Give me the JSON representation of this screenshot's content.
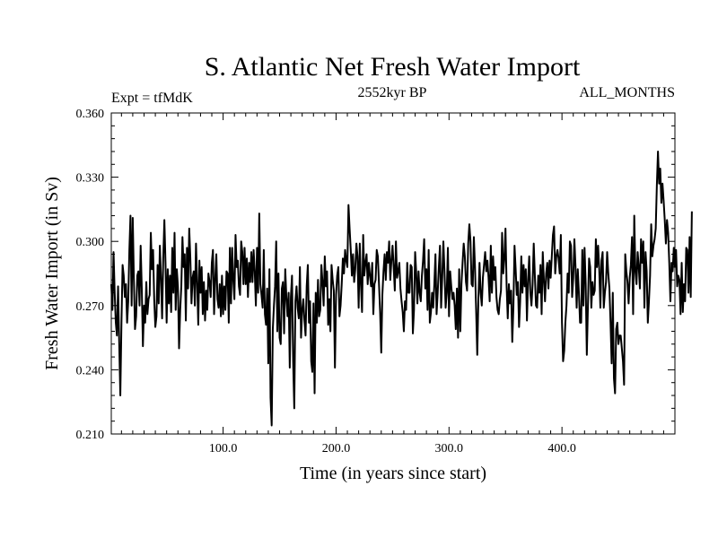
{
  "chart_data": {
    "type": "line",
    "title": "S. Atlantic Net Fresh Water Import",
    "subtitle_left": "Expt = tfMdK",
    "subtitle_center": "2552kyr BP",
    "subtitle_right": "ALL_MONTHS",
    "xlabel": "Time (in years since start)",
    "ylabel": "Fresh Water Import (in Sv)",
    "xlim": [
      1,
      500
    ],
    "ylim": [
      0.21,
      0.36
    ],
    "x_ticks": [
      100,
      200,
      300,
      400
    ],
    "x_tick_labels": [
      "100.0",
      "200.0",
      "300.0",
      "400.0"
    ],
    "y_ticks": [
      0.21,
      0.24,
      0.27,
      0.3,
      0.33,
      0.36
    ],
    "y_tick_labels": [
      "0.210",
      "0.240",
      "0.270",
      "0.300",
      "0.330",
      "0.360"
    ],
    "series": [
      {
        "name": "Net Fresh Water Import",
        "color": "#000000",
        "x_start": 1,
        "x_step": 1,
        "values": [
          0.28,
          0.268,
          0.295,
          0.276,
          0.262,
          0.256,
          0.279,
          0.253,
          0.228,
          0.262,
          0.289,
          0.284,
          0.274,
          0.28,
          0.262,
          0.272,
          0.296,
          0.312,
          0.27,
          0.311,
          0.282,
          0.259,
          0.265,
          0.284,
          0.286,
          0.27,
          0.298,
          0.278,
          0.251,
          0.27,
          0.262,
          0.281,
          0.266,
          0.273,
          0.275,
          0.304,
          0.287,
          0.296,
          0.273,
          0.26,
          0.265,
          0.289,
          0.271,
          0.298,
          0.283,
          0.264,
          0.292,
          0.31,
          0.29,
          0.262,
          0.287,
          0.271,
          0.284,
          0.267,
          0.297,
          0.276,
          0.304,
          0.268,
          0.287,
          0.279,
          0.25,
          0.268,
          0.279,
          0.302,
          0.288,
          0.294,
          0.263,
          0.297,
          0.278,
          0.306,
          0.292,
          0.271,
          0.283,
          0.286,
          0.27,
          0.299,
          0.281,
          0.261,
          0.291,
          0.276,
          0.288,
          0.266,
          0.281,
          0.263,
          0.277,
          0.268,
          0.285,
          0.281,
          0.274,
          0.29,
          0.296,
          0.266,
          0.282,
          0.294,
          0.273,
          0.269,
          0.28,
          0.265,
          0.284,
          0.266,
          0.279,
          0.268,
          0.286,
          0.285,
          0.262,
          0.297,
          0.271,
          0.297,
          0.282,
          0.273,
          0.303,
          0.288,
          0.291,
          0.279,
          0.275,
          0.3,
          0.295,
          0.28,
          0.297,
          0.28,
          0.292,
          0.274,
          0.29,
          0.281,
          0.295,
          0.281,
          0.296,
          0.286,
          0.27,
          0.297,
          0.276,
          0.313,
          0.28,
          0.275,
          0.269,
          0.296,
          0.266,
          0.261,
          0.278,
          0.243,
          0.287,
          0.227,
          0.214,
          0.259,
          0.27,
          0.279,
          0.3,
          0.258,
          0.285,
          0.255,
          0.252,
          0.278,
          0.281,
          0.257,
          0.287,
          0.274,
          0.265,
          0.276,
          0.241,
          0.274,
          0.284,
          0.244,
          0.222,
          0.272,
          0.279,
          0.269,
          0.264,
          0.288,
          0.255,
          0.268,
          0.273,
          0.263,
          0.256,
          0.279,
          0.289,
          0.262,
          0.272,
          0.244,
          0.239,
          0.271,
          0.229,
          0.276,
          0.262,
          0.282,
          0.265,
          0.268,
          0.289,
          0.281,
          0.27,
          0.293,
          0.279,
          0.286,
          0.261,
          0.273,
          0.258,
          0.289,
          0.282,
          0.277,
          0.241,
          0.275,
          0.284,
          0.288,
          0.265,
          0.27,
          0.28,
          0.292,
          0.285,
          0.296,
          0.291,
          0.288,
          0.317,
          0.306,
          0.296,
          0.284,
          0.294,
          0.281,
          0.287,
          0.299,
          0.293,
          0.269,
          0.299,
          0.28,
          0.267,
          0.303,
          0.284,
          0.29,
          0.294,
          0.28,
          0.29,
          0.284,
          0.279,
          0.29,
          0.266,
          0.28,
          0.282,
          0.296,
          0.293,
          0.28,
          0.267,
          0.248,
          0.275,
          0.286,
          0.294,
          0.282,
          0.295,
          0.29,
          0.3,
          0.282,
          0.291,
          0.298,
          0.288,
          0.277,
          0.3,
          0.283,
          0.286,
          0.29,
          0.278,
          0.272,
          0.267,
          0.258,
          0.272,
          0.268,
          0.29,
          0.276,
          0.276,
          0.289,
          0.288,
          0.257,
          0.268,
          0.295,
          0.285,
          0.271,
          0.286,
          0.276,
          0.272,
          0.284,
          0.291,
          0.301,
          0.278,
          0.287,
          0.268,
          0.296,
          0.262,
          0.267,
          0.276,
          0.269,
          0.28,
          0.294,
          0.266,
          0.276,
          0.288,
          0.298,
          0.269,
          0.283,
          0.3,
          0.286,
          0.269,
          0.276,
          0.297,
          0.265,
          0.286,
          0.279,
          0.273,
          0.276,
          0.27,
          0.259,
          0.278,
          0.255,
          0.287,
          0.258,
          0.28,
          0.29,
          0.299,
          0.293,
          0.281,
          0.277,
          0.299,
          0.308,
          0.3,
          0.28,
          0.279,
          0.302,
          0.288,
          0.268,
          0.247,
          0.273,
          0.29,
          0.276,
          0.27,
          0.283,
          0.289,
          0.295,
          0.286,
          0.291,
          0.283,
          0.272,
          0.298,
          0.276,
          0.293,
          0.282,
          0.288,
          0.274,
          0.268,
          0.266,
          0.273,
          0.277,
          0.304,
          0.285,
          0.292,
          0.306,
          0.279,
          0.264,
          0.28,
          0.271,
          0.277,
          0.253,
          0.269,
          0.298,
          0.287,
          0.275,
          0.281,
          0.26,
          0.272,
          0.293,
          0.276,
          0.289,
          0.279,
          0.287,
          0.263,
          0.282,
          0.293,
          0.276,
          0.27,
          0.28,
          0.299,
          0.284,
          0.27,
          0.269,
          0.284,
          0.276,
          0.289,
          0.266,
          0.295,
          0.282,
          0.272,
          0.285,
          0.29,
          0.278,
          0.291,
          0.283,
          0.293,
          0.303,
          0.307,
          0.285,
          0.293,
          0.296,
          0.292,
          0.285,
          0.303,
          0.262,
          0.244,
          0.249,
          0.262,
          0.27,
          0.285,
          0.276,
          0.3,
          0.298,
          0.274,
          0.283,
          0.301,
          0.288,
          0.269,
          0.287,
          0.276,
          0.262,
          0.262,
          0.296,
          0.27,
          0.297,
          0.28,
          0.247,
          0.27,
          0.292,
          0.288,
          0.269,
          0.281,
          0.275,
          0.277,
          0.301,
          0.288,
          0.298,
          0.287,
          0.269,
          0.291,
          0.295,
          0.269,
          0.276,
          0.281,
          0.295,
          0.285,
          0.278,
          0.262,
          0.243,
          0.276,
          0.236,
          0.229,
          0.259,
          0.262,
          0.252,
          0.256,
          0.256,
          0.25,
          0.244,
          0.233,
          0.294,
          0.286,
          0.281,
          0.271,
          0.283,
          0.289,
          0.302,
          0.266,
          0.312,
          0.286,
          0.28,
          0.295,
          0.288,
          0.278,
          0.301,
          0.29,
          0.3,
          0.269,
          0.295,
          0.286,
          0.262,
          0.272,
          0.284,
          0.308,
          0.293,
          0.298,
          0.301,
          0.306,
          0.326,
          0.342,
          0.327,
          0.334,
          0.318,
          0.327,
          0.319,
          0.31,
          0.299,
          0.31,
          0.304,
          0.29,
          0.272,
          0.29,
          0.286,
          0.297,
          0.288,
          0.296,
          0.279,
          0.284,
          0.282,
          0.266,
          0.29,
          0.267,
          0.28,
          0.272,
          0.297,
          0.296,
          0.276,
          0.302,
          0.274,
          0.314
        ]
      }
    ]
  }
}
